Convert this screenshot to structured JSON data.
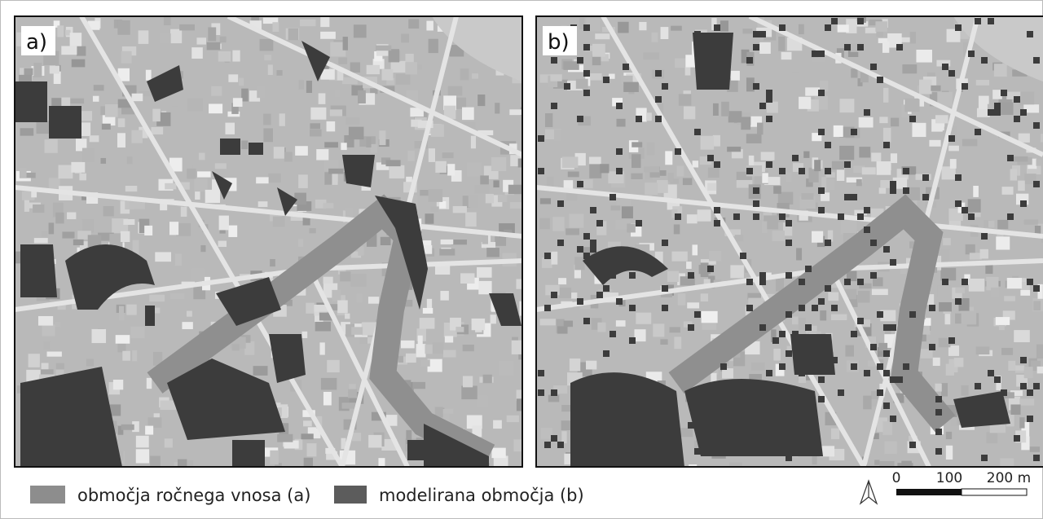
{
  "panels": [
    {
      "label": "a)"
    },
    {
      "label": "b)"
    }
  ],
  "legend": {
    "items": [
      {
        "label": "območja ročnega vnosa (a)"
      },
      {
        "label": "modelirana območja (b)"
      }
    ]
  },
  "scale_bar": {
    "ticks": [
      "0",
      "100",
      "200 m"
    ]
  }
}
